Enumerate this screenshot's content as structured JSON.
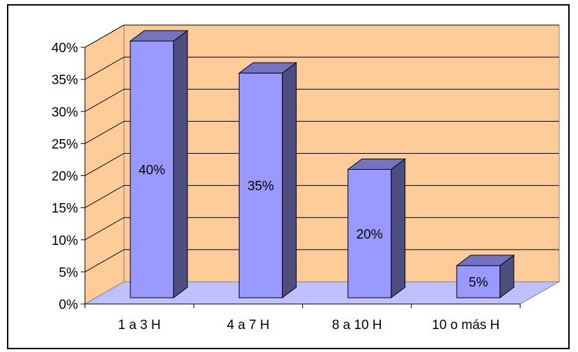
{
  "chart_data": {
    "type": "bar",
    "title": "",
    "xlabel": "",
    "ylabel": "",
    "categories": [
      "1 a 3 H",
      "4 a 7 H",
      "8 a 10 H",
      "10 o más H"
    ],
    "values": [
      40,
      35,
      20,
      5
    ],
    "data_labels": [
      "40%",
      "35%",
      "20%",
      "5%"
    ],
    "ylim": [
      0,
      40
    ],
    "yticks": [
      "0%",
      "5%",
      "10%",
      "15%",
      "20%",
      "25%",
      "30%",
      "35%",
      "40%"
    ],
    "grid": true,
    "legend": "none",
    "colors": {
      "wall": "#FFCC99",
      "floor": "#C0C0FF",
      "bar_front": "#9999FF",
      "bar_top": "#7373BF",
      "bar_side": "#4D4D80"
    }
  }
}
